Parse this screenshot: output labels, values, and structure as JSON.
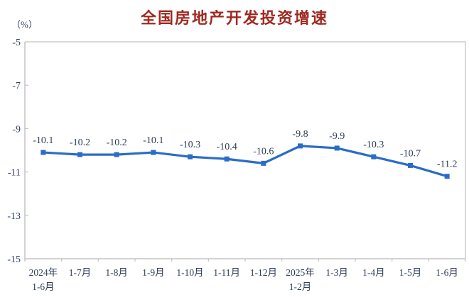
{
  "title": "全国房地产开发投资增速",
  "y_axis_unit_label": "（%）",
  "colors": {
    "title": "#9e2a22",
    "line": "#2b6cc8",
    "text": "#2f3d57",
    "axis": "#c4c4c4",
    "plot_border": "#d9d9d9"
  },
  "chart_data": {
    "type": "line",
    "title": "全国房地产开发投资增速",
    "ylabel": "（%）",
    "categories": [
      [
        "2024年",
        "1-6月"
      ],
      [
        "1-7月"
      ],
      [
        "1-8月"
      ],
      [
        "1-9月"
      ],
      [
        "1-10月"
      ],
      [
        "1-11月"
      ],
      [
        "1-12月"
      ],
      [
        "2025年",
        "1-2月"
      ],
      [
        "1-3月"
      ],
      [
        "1-4月"
      ],
      [
        "1-5月"
      ],
      [
        "1-6月"
      ]
    ],
    "series": [
      {
        "name": "全国房地产开发投资增速",
        "values": [
          -10.1,
          -10.2,
          -10.2,
          -10.1,
          -10.3,
          -10.4,
          -10.6,
          -9.8,
          -9.9,
          -10.3,
          -10.7,
          -11.2
        ]
      }
    ],
    "data_labels": [
      "-10.1",
      "-10.2",
      "-10.2",
      "-10.1",
      "-10.3",
      "-10.4",
      "-10.6",
      "-9.8",
      "-9.9",
      "-10.3",
      "-10.7",
      "-11.2"
    ],
    "y_ticks": [
      "-5",
      "-7",
      "-9",
      "-11",
      "-13",
      "-15"
    ],
    "ylim": [
      -15,
      -5
    ],
    "grid": false,
    "legend": false,
    "marker": "square"
  }
}
